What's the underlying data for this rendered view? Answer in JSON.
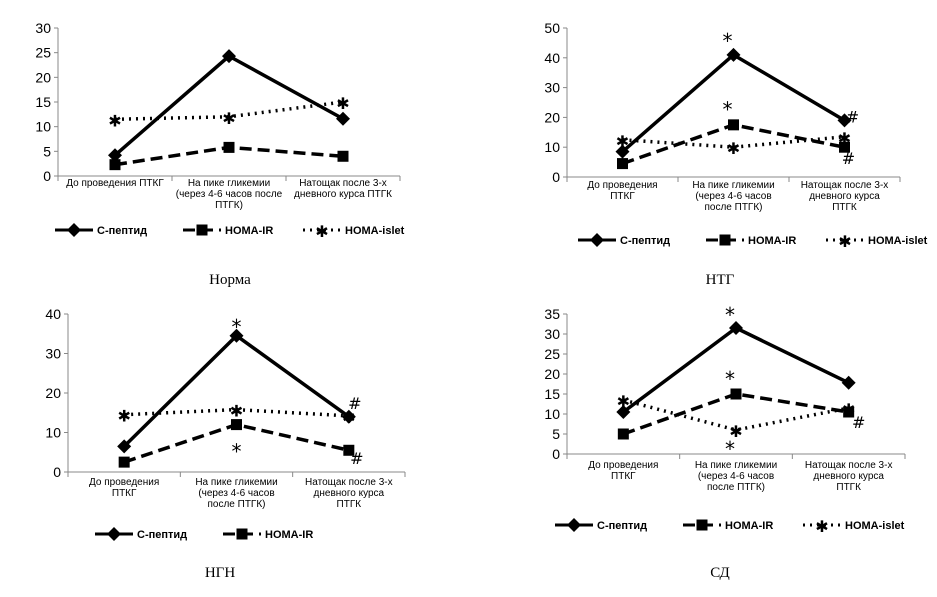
{
  "series_names": [
    "С-пептид",
    "HOMA-IR",
    "HOMA-islet"
  ],
  "categories": [
    [
      "До проведения ПТКГ"
    ],
    [
      "На пике гликемии",
      "(через 4-6 часов после",
      "ПТГК)"
    ],
    [
      "Натощак после 3-х",
      "дневного курса ПТГК"
    ]
  ],
  "chart_data": [
    {
      "type": "line",
      "caption": "Норма",
      "ylim": [
        0,
        30
      ],
      "yticks": [
        "0",
        "5",
        "10",
        "15",
        "20",
        "25",
        "30"
      ],
      "categories": [
        [
          "До проведения ПТКГ"
        ],
        [
          "На пике гликемии",
          "(через 4-6 часов после",
          "ПТГК)"
        ],
        [
          "Натощак после 3-х",
          "дневного курса ПТГК"
        ]
      ],
      "series": [
        {
          "name": "С-пептид",
          "values": [
            4.2,
            24.3,
            11.6
          ]
        },
        {
          "name": "HOMA-IR",
          "values": [
            2.3,
            5.8,
            4.0
          ]
        },
        {
          "name": "HOMA-islet",
          "values": [
            11.5,
            12.0,
            15.0
          ]
        }
      ],
      "annotations": []
    },
    {
      "type": "line",
      "caption": "НТГ",
      "ylim": [
        0,
        50
      ],
      "yticks": [
        "0",
        "10",
        "20",
        "30",
        "40",
        "50"
      ],
      "categories": [
        [
          "До проведения",
          "ПТКГ"
        ],
        [
          "На пике гликемии",
          "(через 4-6 часов",
          "после ПТГК)"
        ],
        [
          "Натощак после 3-х",
          "дневного курса",
          "ПТГК"
        ]
      ],
      "series": [
        {
          "name": "С-пептид",
          "values": [
            8.5,
            41.0,
            19.0
          ]
        },
        {
          "name": "HOMA-IR",
          "values": [
            4.5,
            17.5,
            10.0
          ]
        },
        {
          "name": "HOMA-islet",
          "values": [
            12.5,
            10.0,
            13.5
          ]
        }
      ],
      "annotations": [
        {
          "text": "*",
          "cat": 1,
          "value": 46,
          "dx": -6
        },
        {
          "text": "*",
          "cat": 1,
          "value": 23,
          "dx": -6
        },
        {
          "text": "#",
          "cat": 2,
          "value": 21,
          "dx": 8
        },
        {
          "text": "#",
          "cat": 2,
          "value": 7,
          "dx": 4
        }
      ]
    },
    {
      "type": "line",
      "caption": "НГН",
      "ylim": [
        0,
        40
      ],
      "yticks": [
        "0",
        "10",
        "20",
        "30",
        "40"
      ],
      "categories": [
        [
          "До проведения",
          "ПТКГ"
        ],
        [
          "На пике гликемии",
          "(через 4-6 часов",
          "после ПТГК)"
        ],
        [
          "Натощак после 3-х",
          "дневного курса",
          "ПТГК"
        ]
      ],
      "series": [
        {
          "name": "С-пептид",
          "values": [
            6.5,
            34.5,
            14.0
          ]
        },
        {
          "name": "HOMA-IR",
          "values": [
            2.5,
            12.0,
            5.5
          ]
        },
        {
          "name": "HOMA-islet",
          "values": [
            14.5,
            15.8,
            14.2
          ]
        }
      ],
      "annotations": [
        {
          "text": "*",
          "cat": 1,
          "value": 37,
          "dx": 0
        },
        {
          "text": "*",
          "cat": 1,
          "value": 5.5,
          "dx": 0
        },
        {
          "text": "#",
          "cat": 2,
          "value": 18,
          "dx": 6
        },
        {
          "text": "#",
          "cat": 2,
          "value": 4,
          "dx": 8
        }
      ]
    },
    {
      "type": "line",
      "caption": "СД",
      "ylim": [
        0,
        35
      ],
      "yticks": [
        "0",
        "5",
        "10",
        "15",
        "20",
        "25",
        "30",
        "35"
      ],
      "categories": [
        [
          "До проведения",
          "ПТКГ"
        ],
        [
          "На пике гликемии",
          "(через 4-6 часов",
          "после ПТГК)"
        ],
        [
          "Натощак после 3-х",
          "дневного курса",
          "ПТГК"
        ]
      ],
      "series": [
        {
          "name": "С-пептид",
          "values": [
            10.5,
            31.5,
            17.8
          ]
        },
        {
          "name": "HOMA-IR",
          "values": [
            5.0,
            15.0,
            10.5
          ]
        },
        {
          "name": "HOMA-islet",
          "values": [
            13.5,
            6.0,
            11.5
          ]
        }
      ],
      "annotations": [
        {
          "text": "*",
          "cat": 1,
          "value": 35,
          "dx": -6
        },
        {
          "text": "*",
          "cat": 1,
          "value": 19,
          "dx": -6
        },
        {
          "text": "*",
          "cat": 1,
          "value": 1.5,
          "dx": -6
        },
        {
          "text": "#",
          "cat": 2,
          "value": 8.5,
          "dx": 10
        }
      ]
    }
  ],
  "legend_series": [
    [
      "С-пептид",
      "HOMA-IR",
      "HOMA-islet"
    ],
    [
      "С-пептид",
      "HOMA-IR",
      "HOMA-islet"
    ],
    [
      "С-пептид",
      "HOMA-IR"
    ],
    [
      "С-пептид",
      "HOMA-IR",
      "HOMA-islet"
    ]
  ]
}
